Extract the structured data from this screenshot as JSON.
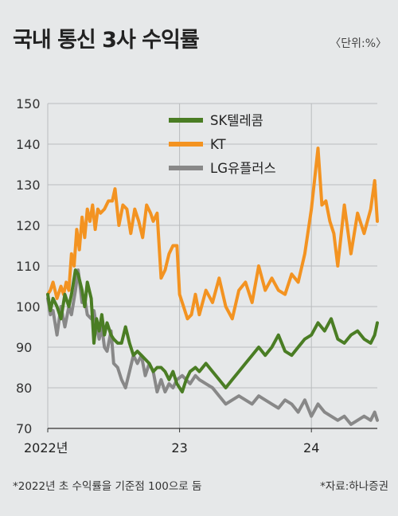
{
  "title": "국내 통신 3사 수익률",
  "unit": "〈단위:%〉",
  "footnote": "*2022년 초 수익률을 기준점 100으로 둠",
  "source": "*자료:하나증권",
  "chart_data": {
    "type": "line",
    "title": "국내 통신 3사 수익률",
    "ylim": [
      70,
      150
    ],
    "yticks": [
      70,
      80,
      90,
      100,
      110,
      120,
      130,
      140,
      150
    ],
    "xlim": [
      0,
      2.5
    ],
    "xticks": [
      {
        "x": 0,
        "label": "2022년"
      },
      {
        "x": 1,
        "label": "23"
      },
      {
        "x": 2,
        "label": "24"
      }
    ],
    "grid": true,
    "legend": "top-center",
    "series": [
      {
        "name": "SK텔레콤",
        "color": "#4a7d24",
        "x": [
          0.0,
          0.02,
          0.04,
          0.07,
          0.1,
          0.13,
          0.16,
          0.18,
          0.21,
          0.23,
          0.26,
          0.28,
          0.3,
          0.33,
          0.35,
          0.37,
          0.39,
          0.41,
          0.43,
          0.45,
          0.48,
          0.5,
          0.53,
          0.56,
          0.59,
          0.62,
          0.65,
          0.68,
          0.71,
          0.74,
          0.77,
          0.8,
          0.83,
          0.86,
          0.89,
          0.92,
          0.95,
          0.98,
          1.02,
          1.05,
          1.08,
          1.12,
          1.15,
          1.2,
          1.25,
          1.3,
          1.35,
          1.4,
          1.45,
          1.5,
          1.55,
          1.6,
          1.65,
          1.7,
          1.75,
          1.8,
          1.85,
          1.9,
          1.95,
          2.0,
          2.05,
          2.1,
          2.15,
          2.2,
          2.25,
          2.3,
          2.35,
          2.4,
          2.45,
          2.48,
          2.5
        ],
        "values": [
          103,
          99,
          102,
          100,
          97,
          103,
          100,
          103,
          109,
          108,
          104,
          100,
          106,
          102,
          91,
          97,
          94,
          98,
          93,
          96,
          93,
          92,
          91,
          91,
          95,
          91,
          88,
          89,
          88,
          87,
          86,
          84,
          85,
          85,
          84,
          82,
          84,
          81,
          79,
          82,
          84,
          85,
          84,
          86,
          84,
          82,
          80,
          82,
          84,
          86,
          88,
          90,
          88,
          90,
          93,
          89,
          88,
          90,
          92,
          93,
          96,
          94,
          97,
          92,
          91,
          93,
          94,
          92,
          91,
          93,
          96
        ]
      },
      {
        "name": "KT",
        "color": "#f39321",
        "x": [
          0.0,
          0.02,
          0.04,
          0.07,
          0.1,
          0.12,
          0.14,
          0.16,
          0.18,
          0.2,
          0.22,
          0.24,
          0.26,
          0.28,
          0.3,
          0.32,
          0.34,
          0.36,
          0.38,
          0.4,
          0.43,
          0.46,
          0.49,
          0.51,
          0.54,
          0.57,
          0.6,
          0.63,
          0.66,
          0.69,
          0.72,
          0.75,
          0.78,
          0.8,
          0.83,
          0.86,
          0.89,
          0.92,
          0.95,
          0.98,
          1.0,
          1.03,
          1.06,
          1.09,
          1.12,
          1.15,
          1.2,
          1.25,
          1.3,
          1.35,
          1.4,
          1.45,
          1.5,
          1.55,
          1.6,
          1.65,
          1.7,
          1.75,
          1.8,
          1.85,
          1.9,
          1.95,
          2.0,
          2.05,
          2.08,
          2.11,
          2.14,
          2.17,
          2.2,
          2.25,
          2.3,
          2.35,
          2.4,
          2.45,
          2.48,
          2.5
        ],
        "values": [
          103,
          104,
          106,
          102,
          105,
          103,
          106,
          104,
          113,
          110,
          119,
          114,
          122,
          117,
          124,
          121,
          125,
          119,
          124,
          123,
          124,
          126,
          126,
          129,
          120,
          125,
          124,
          118,
          124,
          121,
          117,
          125,
          123,
          121,
          123,
          107,
          109,
          113,
          115,
          115,
          103,
          100,
          97,
          98,
          103,
          98,
          104,
          101,
          107,
          100,
          97,
          104,
          106,
          101,
          110,
          104,
          107,
          104,
          103,
          108,
          106,
          113,
          124,
          139,
          125,
          126,
          121,
          118,
          110,
          125,
          113,
          123,
          118,
          124,
          131,
          121
        ]
      },
      {
        "name": "LG유플러스",
        "color": "#888888",
        "x": [
          0.0,
          0.02,
          0.04,
          0.07,
          0.1,
          0.13,
          0.16,
          0.18,
          0.21,
          0.23,
          0.26,
          0.28,
          0.3,
          0.33,
          0.35,
          0.37,
          0.39,
          0.41,
          0.43,
          0.45,
          0.48,
          0.5,
          0.53,
          0.56,
          0.59,
          0.62,
          0.65,
          0.68,
          0.71,
          0.74,
          0.77,
          0.8,
          0.83,
          0.86,
          0.89,
          0.92,
          0.95,
          0.98,
          1.02,
          1.05,
          1.08,
          1.12,
          1.15,
          1.2,
          1.25,
          1.3,
          1.35,
          1.4,
          1.45,
          1.5,
          1.55,
          1.6,
          1.65,
          1.7,
          1.75,
          1.8,
          1.85,
          1.9,
          1.95,
          2.0,
          2.05,
          2.1,
          2.15,
          2.2,
          2.25,
          2.3,
          2.35,
          2.4,
          2.45,
          2.48,
          2.5
        ],
        "values": [
          102,
          98,
          99,
          93,
          100,
          95,
          100,
          98,
          104,
          109,
          101,
          102,
          98,
          97,
          99,
          95,
          92,
          95,
          90,
          89,
          94,
          86,
          85,
          82,
          80,
          84,
          88,
          86,
          88,
          83,
          86,
          84,
          79,
          82,
          79,
          81,
          80,
          82,
          83,
          82,
          81,
          83,
          82,
          81,
          80,
          78,
          76,
          77,
          78,
          77,
          76,
          78,
          77,
          76,
          75,
          77,
          76,
          74,
          77,
          73,
          76,
          74,
          73,
          72,
          73,
          71,
          72,
          73,
          72,
          74,
          72
        ]
      }
    ]
  }
}
